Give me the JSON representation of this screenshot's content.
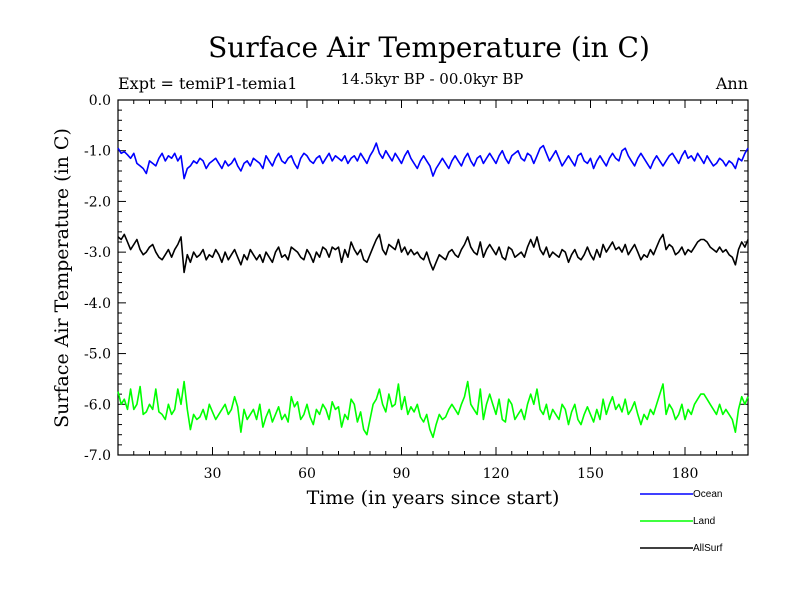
{
  "chart_data": {
    "type": "line",
    "title": "Surface Air Temperature (in C)",
    "subtitle": "14.5kyr BP - 00.0kyr BP",
    "expt_label": "Expt = temiP1-temia1",
    "season_label": "Ann",
    "xlabel": "Time (in years since start)",
    "ylabel": "Surface Air Temperature (in C)",
    "xlim": [
      0,
      200
    ],
    "ylim": [
      -7.0,
      0.0
    ],
    "xticks": [
      30,
      60,
      90,
      120,
      150,
      180
    ],
    "yticks": [
      0.0,
      -1.0,
      -2.0,
      -3.0,
      -4.0,
      -5.0,
      -6.0,
      -7.0
    ],
    "ytick_labels": [
      "0.0",
      "-1.0",
      "-2.0",
      "-3.0",
      "-4.0",
      "-5.0",
      "-6.0",
      "-7.0"
    ],
    "legend_position": "bottom-right, below plot",
    "series": [
      {
        "name": "Ocean",
        "color": "#0000ff",
        "mean": -1.15,
        "values": [
          -0.95,
          -1.05,
          -1.02,
          -1.08,
          -1.15,
          -1.05,
          -1.25,
          -1.3,
          -1.35,
          -1.45,
          -1.2,
          -1.25,
          -1.3,
          -1.15,
          -1.05,
          -1.2,
          -1.1,
          -1.15,
          -1.05,
          -1.2,
          -1.1,
          -1.55,
          -1.35,
          -1.3,
          -1.2,
          -1.25,
          -1.15,
          -1.2,
          -1.35,
          -1.25,
          -1.2,
          -1.15,
          -1.25,
          -1.35,
          -1.2,
          -1.3,
          -1.25,
          -1.15,
          -1.3,
          -1.4,
          -1.25,
          -1.2,
          -1.3,
          -1.15,
          -1.2,
          -1.25,
          -1.35,
          -1.1,
          -1.2,
          -1.3,
          -1.15,
          -1.05,
          -1.2,
          -1.25,
          -1.15,
          -1.1,
          -1.25,
          -1.35,
          -1.15,
          -1.05,
          -1.1,
          -1.2,
          -1.25,
          -1.15,
          -1.1,
          -1.25,
          -1.15,
          -1.05,
          -1.2,
          -1.1,
          -1.15,
          -1.2,
          -1.1,
          -1.25,
          -1.15,
          -1.1,
          -1.2,
          -1.05,
          -1.15,
          -1.25,
          -1.1,
          -1.0,
          -0.85,
          -1.05,
          -1.15,
          -1.0,
          -1.1,
          -1.2,
          -1.05,
          -1.15,
          -1.25,
          -1.1,
          -1.0,
          -1.15,
          -1.25,
          -1.35,
          -1.2,
          -1.1,
          -1.2,
          -1.3,
          -1.5,
          -1.35,
          -1.25,
          -1.15,
          -1.25,
          -1.35,
          -1.2,
          -1.1,
          -1.2,
          -1.3,
          -1.15,
          -1.05,
          -1.2,
          -1.3,
          -1.15,
          -1.1,
          -1.25,
          -1.15,
          -1.05,
          -1.15,
          -1.25,
          -1.1,
          -1.0,
          -1.15,
          -1.25,
          -1.1,
          -1.05,
          -1.0,
          -1.15,
          -1.2,
          -1.05,
          -1.1,
          -1.25,
          -1.1,
          -0.95,
          -0.9,
          -1.05,
          -1.2,
          -1.1,
          -1.0,
          -1.15,
          -1.3,
          -1.2,
          -1.1,
          -1.2,
          -1.3,
          -1.1,
          -1.05,
          -1.2,
          -1.25,
          -1.15,
          -1.35,
          -1.2,
          -1.1,
          -1.2,
          -1.3,
          -1.15,
          -1.05,
          -1.15,
          -1.2,
          -1.0,
          -0.95,
          -1.1,
          -1.2,
          -1.3,
          -1.15,
          -1.05,
          -1.15,
          -1.25,
          -1.35,
          -1.2,
          -1.1,
          -1.2,
          -1.3,
          -1.2,
          -1.1,
          -1.05,
          -1.15,
          -1.25,
          -1.1,
          -1.0,
          -1.15,
          -1.1,
          -1.2,
          -1.05,
          -1.15,
          -1.25,
          -1.1,
          -1.2,
          -1.3,
          -1.25,
          -1.15,
          -1.2,
          -1.3,
          -1.2,
          -1.25,
          -1.35,
          -1.15,
          -1.2,
          -1.05,
          -0.95
        ]
      },
      {
        "name": "Land",
        "color": "#00ff00",
        "mean": -6.05,
        "values": [
          -5.75,
          -6.0,
          -5.9,
          -6.1,
          -5.7,
          -6.1,
          -6.0,
          -5.65,
          -6.2,
          -6.15,
          -6.0,
          -6.1,
          -5.7,
          -6.15,
          -6.2,
          -6.3,
          -6.0,
          -6.2,
          -6.1,
          -5.7,
          -6.0,
          -5.55,
          -6.1,
          -6.5,
          -6.2,
          -6.3,
          -6.25,
          -6.1,
          -6.3,
          -6.0,
          -6.15,
          -6.3,
          -6.2,
          -6.1,
          -6.0,
          -6.2,
          -6.1,
          -5.85,
          -6.05,
          -6.55,
          -6.1,
          -6.3,
          -6.2,
          -6.1,
          -6.3,
          -6.0,
          -6.45,
          -6.25,
          -6.1,
          -6.35,
          -6.2,
          -6.05,
          -6.3,
          -6.2,
          -6.35,
          -5.85,
          -6.05,
          -5.95,
          -6.3,
          -6.2,
          -6.0,
          -6.25,
          -6.4,
          -6.1,
          -6.2,
          -6.0,
          -6.1,
          -6.3,
          -5.95,
          -6.1,
          -6.05,
          -6.45,
          -6.2,
          -6.3,
          -5.9,
          -6.0,
          -6.35,
          -6.15,
          -6.5,
          -6.6,
          -6.3,
          -6.0,
          -5.9,
          -5.7,
          -6.0,
          -6.15,
          -5.8,
          -6.05,
          -6.0,
          -5.6,
          -6.1,
          -5.85,
          -6.2,
          -6.05,
          -6.15,
          -6.0,
          -6.25,
          -6.35,
          -6.2,
          -6.5,
          -6.65,
          -6.4,
          -6.2,
          -6.3,
          -6.25,
          -6.1,
          -6.0,
          -6.1,
          -6.2,
          -6.0,
          -5.85,
          -5.55,
          -6.0,
          -6.1,
          -6.2,
          -5.7,
          -6.3,
          -6.0,
          -5.8,
          -6.0,
          -6.2,
          -5.9,
          -6.3,
          -6.35,
          -5.9,
          -6.0,
          -6.3,
          -6.2,
          -6.1,
          -6.3,
          -6.0,
          -5.8,
          -6.0,
          -5.7,
          -6.1,
          -6.2,
          -6.0,
          -6.3,
          -6.1,
          -6.2,
          -6.3,
          -6.0,
          -6.1,
          -6.4,
          -6.15,
          -6.0,
          -6.3,
          -6.4,
          -6.2,
          -6.05,
          -6.2,
          -6.35,
          -6.1,
          -6.3,
          -5.9,
          -6.2,
          -6.0,
          -5.85,
          -6.1,
          -6.0,
          -6.15,
          -5.9,
          -6.2,
          -6.1,
          -5.95,
          -6.2,
          -6.4,
          -6.2,
          -6.3,
          -6.1,
          -6.2,
          -6.0,
          -5.8,
          -5.6,
          -6.2,
          -6.0,
          -6.1,
          -6.3,
          -6.2,
          -6.0,
          -6.3,
          -6.1,
          -6.2,
          -6.0,
          -5.9,
          -5.8,
          -5.8,
          -5.9,
          -6.0,
          -6.1,
          -6.2,
          -6.0,
          -6.2,
          -6.1,
          -6.2,
          -6.3,
          -6.55,
          -6.1,
          -5.85,
          -6.0,
          -5.85
        ]
      },
      {
        "name": "AllSurf",
        "color": "#000000",
        "mean": -2.9,
        "values": [
          -2.7,
          -2.75,
          -2.65,
          -2.8,
          -2.95,
          -2.85,
          -2.75,
          -2.95,
          -3.05,
          -3.0,
          -2.9,
          -2.85,
          -3.0,
          -3.1,
          -3.15,
          -3.05,
          -2.95,
          -3.1,
          -2.95,
          -2.85,
          -2.7,
          -3.4,
          -3.05,
          -3.2,
          -3.0,
          -3.1,
          -3.05,
          -2.95,
          -3.15,
          -3.05,
          -3.1,
          -2.95,
          -3.05,
          -3.2,
          -3.0,
          -3.15,
          -3.05,
          -2.95,
          -3.1,
          -3.25,
          -3.05,
          -3.15,
          -2.95,
          -3.05,
          -3.15,
          -3.05,
          -3.2,
          -3.0,
          -3.1,
          -3.2,
          -3.0,
          -2.9,
          -3.1,
          -3.05,
          -3.15,
          -2.9,
          -2.95,
          -3.0,
          -3.1,
          -3.15,
          -2.95,
          -3.05,
          -3.2,
          -3.0,
          -3.1,
          -2.9,
          -2.95,
          -3.1,
          -2.9,
          -2.95,
          -2.9,
          -3.2,
          -2.95,
          -3.1,
          -2.8,
          -2.95,
          -3.05,
          -2.95,
          -3.15,
          -3.2,
          -3.05,
          -2.9,
          -2.75,
          -2.65,
          -2.95,
          -3.05,
          -2.85,
          -2.9,
          -2.95,
          -2.75,
          -3.0,
          -2.9,
          -3.05,
          -2.95,
          -3.05,
          -3.0,
          -3.1,
          -3.15,
          -3.0,
          -3.2,
          -3.35,
          -3.2,
          -3.05,
          -3.1,
          -3.15,
          -3.0,
          -2.95,
          -3.05,
          -3.1,
          -2.95,
          -2.85,
          -2.7,
          -2.9,
          -3.0,
          -3.05,
          -2.8,
          -3.1,
          -2.95,
          -2.85,
          -2.95,
          -3.05,
          -2.9,
          -3.1,
          -3.15,
          -2.9,
          -2.95,
          -3.1,
          -3.05,
          -3.0,
          -3.1,
          -2.9,
          -2.75,
          -2.9,
          -2.7,
          -2.95,
          -3.05,
          -2.9,
          -3.1,
          -3.0,
          -3.05,
          -3.1,
          -2.95,
          -3.0,
          -3.2,
          -3.05,
          -2.95,
          -3.1,
          -3.15,
          -3.05,
          -2.9,
          -3.05,
          -3.15,
          -2.95,
          -3.1,
          -2.85,
          -3.0,
          -2.9,
          -2.8,
          -2.95,
          -2.9,
          -3.0,
          -2.85,
          -3.05,
          -2.95,
          -2.85,
          -3.0,
          -3.15,
          -3.05,
          -3.1,
          -2.95,
          -3.05,
          -2.9,
          -2.75,
          -2.65,
          -2.95,
          -2.85,
          -2.9,
          -3.05,
          -3.0,
          -2.9,
          -3.05,
          -2.95,
          -3.0,
          -2.9,
          -2.8,
          -2.75,
          -2.75,
          -2.8,
          -2.9,
          -2.95,
          -3.0,
          -2.9,
          -3.0,
          -2.95,
          -3.05,
          -3.1,
          -3.25,
          -2.95,
          -2.8,
          -2.9,
          -2.75
        ]
      }
    ]
  }
}
